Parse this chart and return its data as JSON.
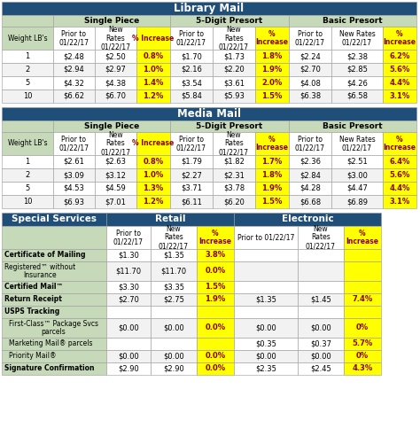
{
  "library_mail": {
    "title": "Library Mail",
    "rows": [
      [
        "1",
        "$2.48",
        "$2.50",
        "0.8%",
        "$1.70",
        "$1.73",
        "1.8%",
        "$2.24",
        "$2.38",
        "6.2%"
      ],
      [
        "2",
        "$2.94",
        "$2.97",
        "1.0%",
        "$2.16",
        "$2.20",
        "1.9%",
        "$2.70",
        "$2.85",
        "5.6%"
      ],
      [
        "5",
        "$4.32",
        "$4.38",
        "1.4%",
        "$3.54",
        "$3.61",
        "2.0%",
        "$4.08",
        "$4.26",
        "4.4%"
      ],
      [
        "10",
        "$6.62",
        "$6.70",
        "1.2%",
        "$5.84",
        "$5.93",
        "1.5%",
        "$6.38",
        "$6.58",
        "3.1%"
      ]
    ]
  },
  "media_mail": {
    "title": "Media Mail",
    "rows": [
      [
        "1",
        "$2.61",
        "$2.63",
        "0.8%",
        "$1.79",
        "$1.82",
        "1.7%",
        "$2.36",
        "$2.51",
        "6.4%"
      ],
      [
        "2",
        "$3.09",
        "$3.12",
        "1.0%",
        "$2.27",
        "$2.31",
        "1.8%",
        "$2.84",
        "$3.00",
        "5.6%"
      ],
      [
        "5",
        "$4.53",
        "$4.59",
        "1.3%",
        "$3.71",
        "$3.78",
        "1.9%",
        "$4.28",
        "$4.47",
        "4.4%"
      ],
      [
        "10",
        "$6.93",
        "$7.01",
        "1.2%",
        "$6.11",
        "$6.20",
        "1.5%",
        "$6.68",
        "$6.89",
        "3.1%"
      ]
    ]
  },
  "special_services": {
    "rows": [
      [
        "Certificate of Mailing",
        "$1.30",
        "$1.35",
        "3.8%",
        "",
        "",
        ""
      ],
      [
        "Registered™ without\nInsurance",
        "$11.70",
        "$11.70",
        "0.0%",
        "",
        "",
        ""
      ],
      [
        "Certified Mail™",
        "$3.30",
        "$3.35",
        "1.5%",
        "",
        "",
        ""
      ],
      [
        "Return Receipt",
        "$2.70",
        "$2.75",
        "1.9%",
        "$1.35",
        "$1.45",
        "7.4%"
      ],
      [
        "USPS Tracking",
        "",
        "",
        "",
        "",
        "",
        ""
      ],
      [
        "First-Class™ Package Svcs\nparcels",
        "$0.00",
        "$0.00",
        "0.0%",
        "$0.00",
        "$0.00",
        "0%"
      ],
      [
        "Marketing Mail® parcels",
        "",
        "",
        "",
        "$0.35",
        "$0.37",
        "5.7%"
      ],
      [
        "Priority Mail®",
        "$0.00",
        "$0.00",
        "0.0%",
        "$0.00",
        "$0.00",
        "0%"
      ],
      [
        "Signature Confirmation",
        "$2.90",
        "$2.90",
        "0.0%",
        "$2.35",
        "$2.45",
        "4.3%"
      ]
    ],
    "row_bold": [
      true,
      false,
      true,
      true,
      true,
      false,
      false,
      false,
      true
    ],
    "row_indent": [
      false,
      false,
      false,
      false,
      false,
      true,
      true,
      true,
      false
    ]
  },
  "colors": {
    "title_bg": "#1F4E79",
    "title_fg": "#FFFFFF",
    "header_bg": "#C6D9B8",
    "yellow_bg": "#FFFF00",
    "yellow_fg": "#8B0000",
    "white_bg": "#FFFFFF",
    "row_alt": "#F2F2F2",
    "black": "#000000",
    "border": "#999999"
  },
  "sub_labels_10": [
    "Weight LB's",
    "Prior to\n01/22/17",
    "New\nRates\n01/22/17",
    "% Increase",
    "Prior to\n01/22/17",
    "New\nRates\n01/22/17",
    "%\nIncrease",
    "Prior to\n01/22/17",
    "New Rates\n01/22/17",
    "%\nIncrease"
  ],
  "ss_sub_labels": [
    "",
    "Prior to\n01/22/17",
    "New\nRates\n01/22/17",
    "%\nIncrease",
    "Prior to 01/22/17",
    "New\nRates\n01/22/17",
    "%\nIncrease"
  ]
}
